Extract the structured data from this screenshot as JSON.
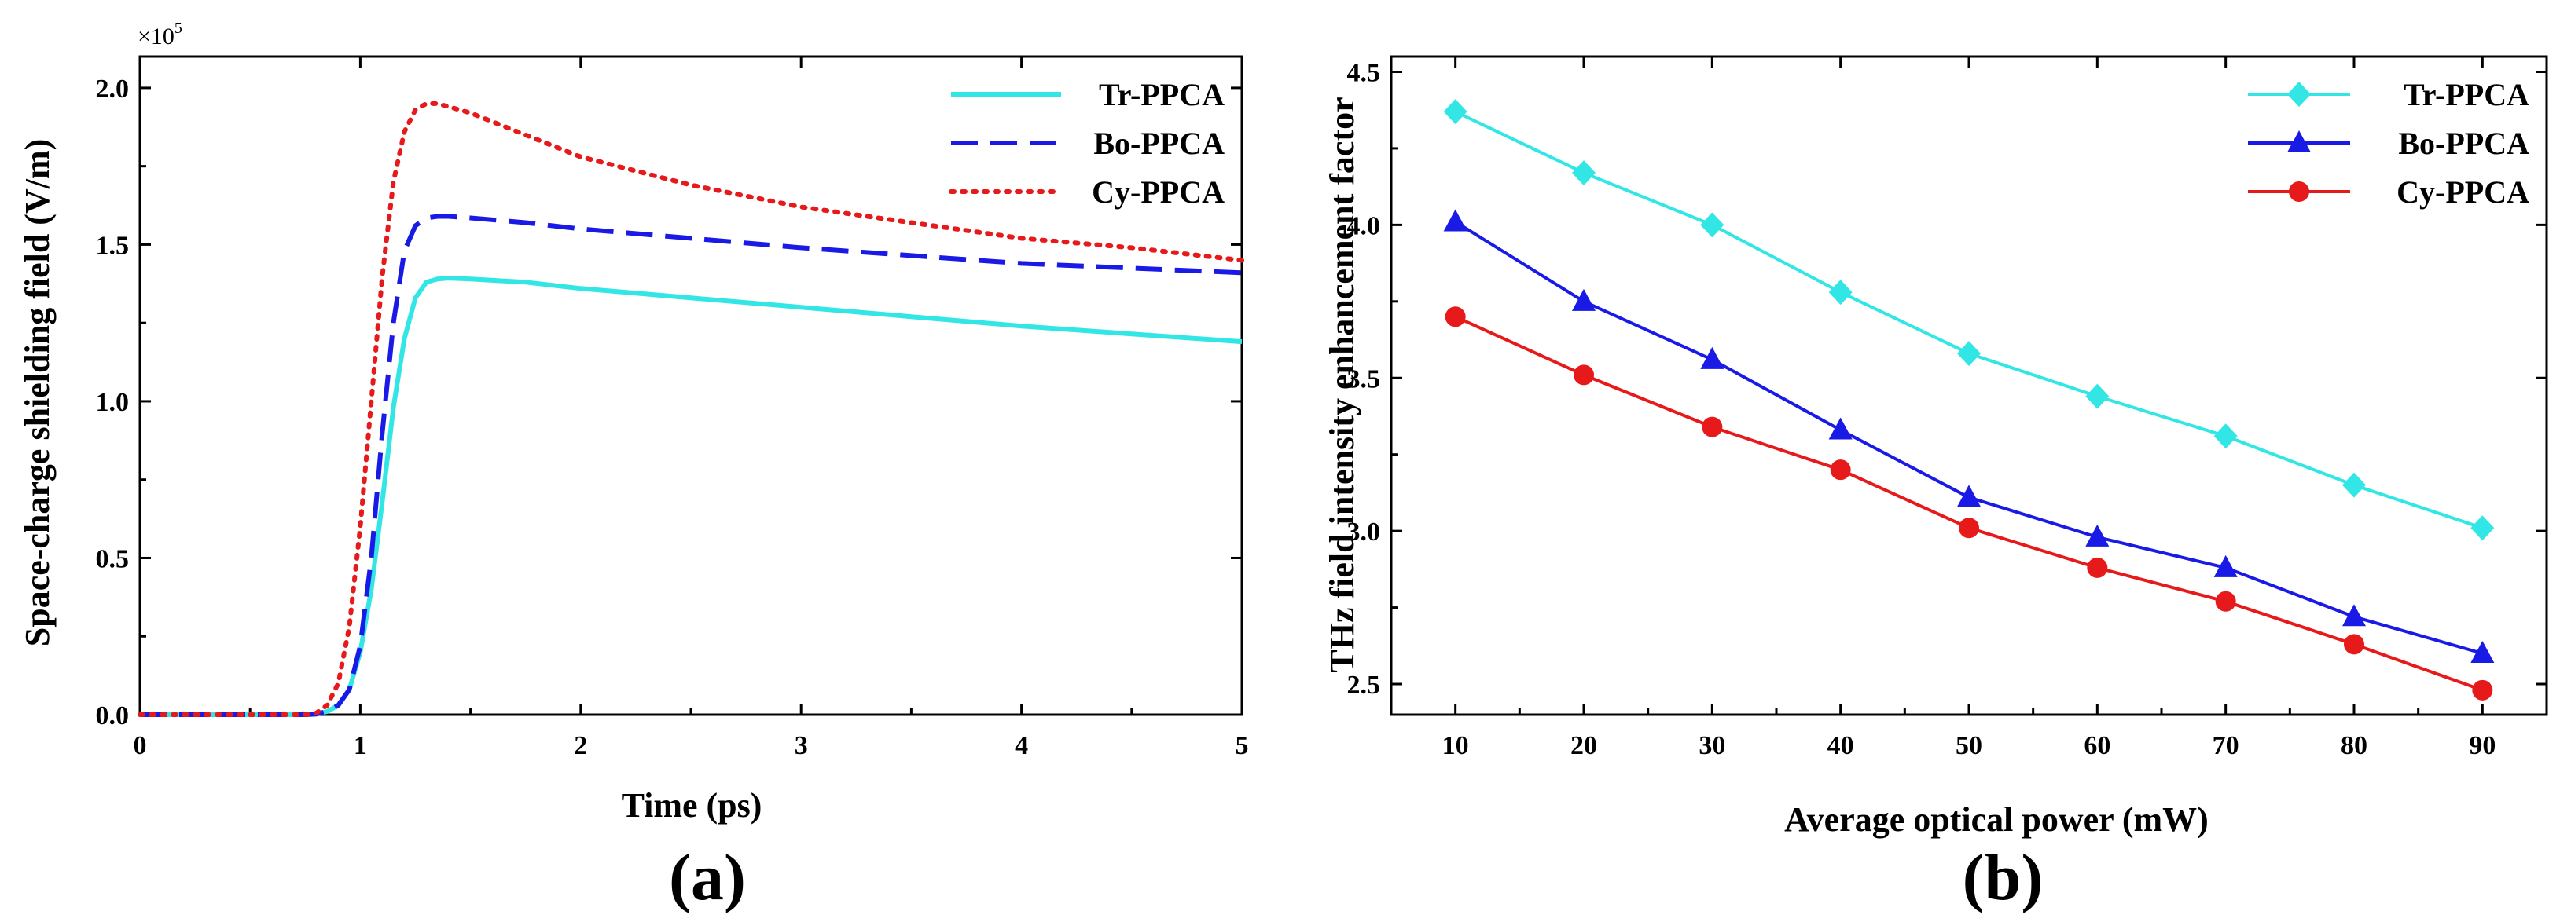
{
  "chart_data": [
    {
      "type": "line",
      "panel": "(a)",
      "xlabel": "Time (ps)",
      "ylabel": "Space-charge shielding field (V/m)",
      "y_multiplier_base": "×10",
      "y_multiplier_exp": "5",
      "xlim": [
        0,
        5
      ],
      "ylim": [
        0,
        2.1
      ],
      "xticks": [
        0,
        1,
        2,
        3,
        4,
        5
      ],
      "xtick_labels": [
        "0",
        "1",
        "2",
        "3",
        "4",
        "5"
      ],
      "yticks": [
        0,
        0.5,
        1.0,
        1.5,
        2.0
      ],
      "ytick_labels": [
        "0.0",
        "0.5",
        "1.0",
        "1.5",
        "2.0"
      ],
      "legend_position": "top-right",
      "x": [
        0,
        0.25,
        0.5,
        0.75,
        0.8,
        0.85,
        0.9,
        0.95,
        1.0,
        1.05,
        1.1,
        1.15,
        1.2,
        1.25,
        1.3,
        1.35,
        1.4,
        1.5,
        1.75,
        2.0,
        2.5,
        3.0,
        3.5,
        4.0,
        4.5,
        5.0
      ],
      "series": [
        {
          "name": "Tr-PPCA",
          "color": "#33e6e6",
          "style": "solid",
          "values": [
            0,
            0,
            0,
            0,
            0.002,
            0.01,
            0.03,
            0.08,
            0.2,
            0.4,
            0.68,
            0.98,
            1.2,
            1.33,
            1.38,
            1.39,
            1.393,
            1.39,
            1.38,
            1.36,
            1.33,
            1.3,
            1.27,
            1.24,
            1.215,
            1.19
          ]
        },
        {
          "name": "Bo-PPCA",
          "color": "#1a1ae6",
          "style": "dashed",
          "values": [
            0,
            0,
            0,
            0,
            0.002,
            0.01,
            0.03,
            0.08,
            0.22,
            0.5,
            0.9,
            1.25,
            1.48,
            1.56,
            1.585,
            1.59,
            1.59,
            1.585,
            1.57,
            1.55,
            1.52,
            1.49,
            1.465,
            1.44,
            1.425,
            1.41
          ]
        },
        {
          "name": "Cy-PPCA",
          "color": "#e61a1a",
          "style": "dotted",
          "values": [
            0,
            0,
            0,
            0,
            0.005,
            0.03,
            0.1,
            0.28,
            0.6,
            1.0,
            1.4,
            1.7,
            1.86,
            1.93,
            1.95,
            1.95,
            1.94,
            1.92,
            1.85,
            1.78,
            1.69,
            1.62,
            1.57,
            1.52,
            1.49,
            1.45
          ]
        }
      ]
    },
    {
      "type": "line",
      "panel": "(b)",
      "xlabel": "Average optical power (mW)",
      "ylabel": "THz field intensity enhancement factor",
      "xlim": [
        5,
        95
      ],
      "ylim": [
        2.4,
        4.55
      ],
      "xticks": [
        10,
        20,
        30,
        40,
        50,
        60,
        70,
        80,
        90
      ],
      "xtick_labels": [
        "10",
        "20",
        "30",
        "40",
        "50",
        "60",
        "70",
        "80",
        "90"
      ],
      "yticks": [
        2.5,
        3.0,
        3.5,
        4.0,
        4.5
      ],
      "ytick_labels": [
        "2.5",
        "3.0",
        "3.5",
        "4.0",
        "4.5"
      ],
      "legend_position": "top-right",
      "x": [
        10,
        20,
        30,
        40,
        50,
        60,
        70,
        80,
        90
      ],
      "series": [
        {
          "name": "Tr-PPCA",
          "color": "#33e6e6",
          "marker": "diamond",
          "values": [
            4.37,
            4.17,
            4.0,
            3.78,
            3.58,
            3.44,
            3.31,
            3.15,
            3.01
          ]
        },
        {
          "name": "Bo-PPCA",
          "color": "#1a1ae6",
          "marker": "triangle",
          "values": [
            4.01,
            3.75,
            3.56,
            3.33,
            3.11,
            2.98,
            2.88,
            2.72,
            2.6
          ]
        },
        {
          "name": "Cy-PPCA",
          "color": "#e61a1a",
          "marker": "circle",
          "values": [
            3.7,
            3.51,
            3.34,
            3.2,
            3.01,
            2.88,
            2.77,
            2.63,
            2.48
          ]
        }
      ]
    }
  ]
}
